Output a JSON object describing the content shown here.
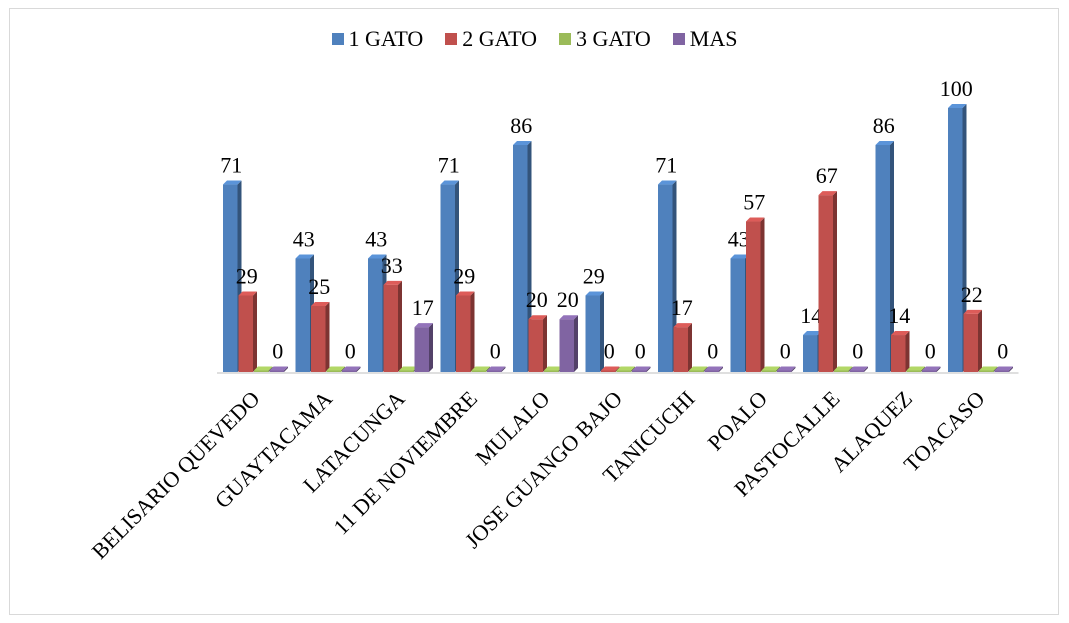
{
  "chart_data": {
    "type": "bar",
    "style": "3d-clustered-column",
    "categories": [
      "BELISARIO QUEVEDO",
      "GUAYTACAMA",
      "LATACUNGA",
      "11 DE NOVIEMBRE",
      "MULALO",
      "JOSE GUANGO BAJO",
      "TANICUCHI",
      "POALO",
      "PASTOCALLE",
      "ALAQUEZ",
      "TOACASO"
    ],
    "series": [
      {
        "name": "1 GATO",
        "color": "#4f81bd",
        "values": [
          71,
          43,
          43,
          71,
          86,
          29,
          71,
          43,
          14,
          86,
          100
        ]
      },
      {
        "name": "2 GATO",
        "color": "#c0504d",
        "values": [
          29,
          25,
          33,
          29,
          20,
          0,
          17,
          57,
          67,
          14,
          22
        ]
      },
      {
        "name": "3 GATO",
        "color": "#9bbb59",
        "values": [
          0,
          0,
          0,
          0,
          0,
          0,
          0,
          0,
          0,
          0,
          0
        ]
      },
      {
        "name": "MAS",
        "color": "#8064a2",
        "values": [
          0,
          0,
          17,
          0,
          20,
          0,
          0,
          0,
          0,
          0,
          0
        ]
      }
    ],
    "ylim": [
      0,
      100
    ],
    "grid": false,
    "legend_position": "top"
  }
}
